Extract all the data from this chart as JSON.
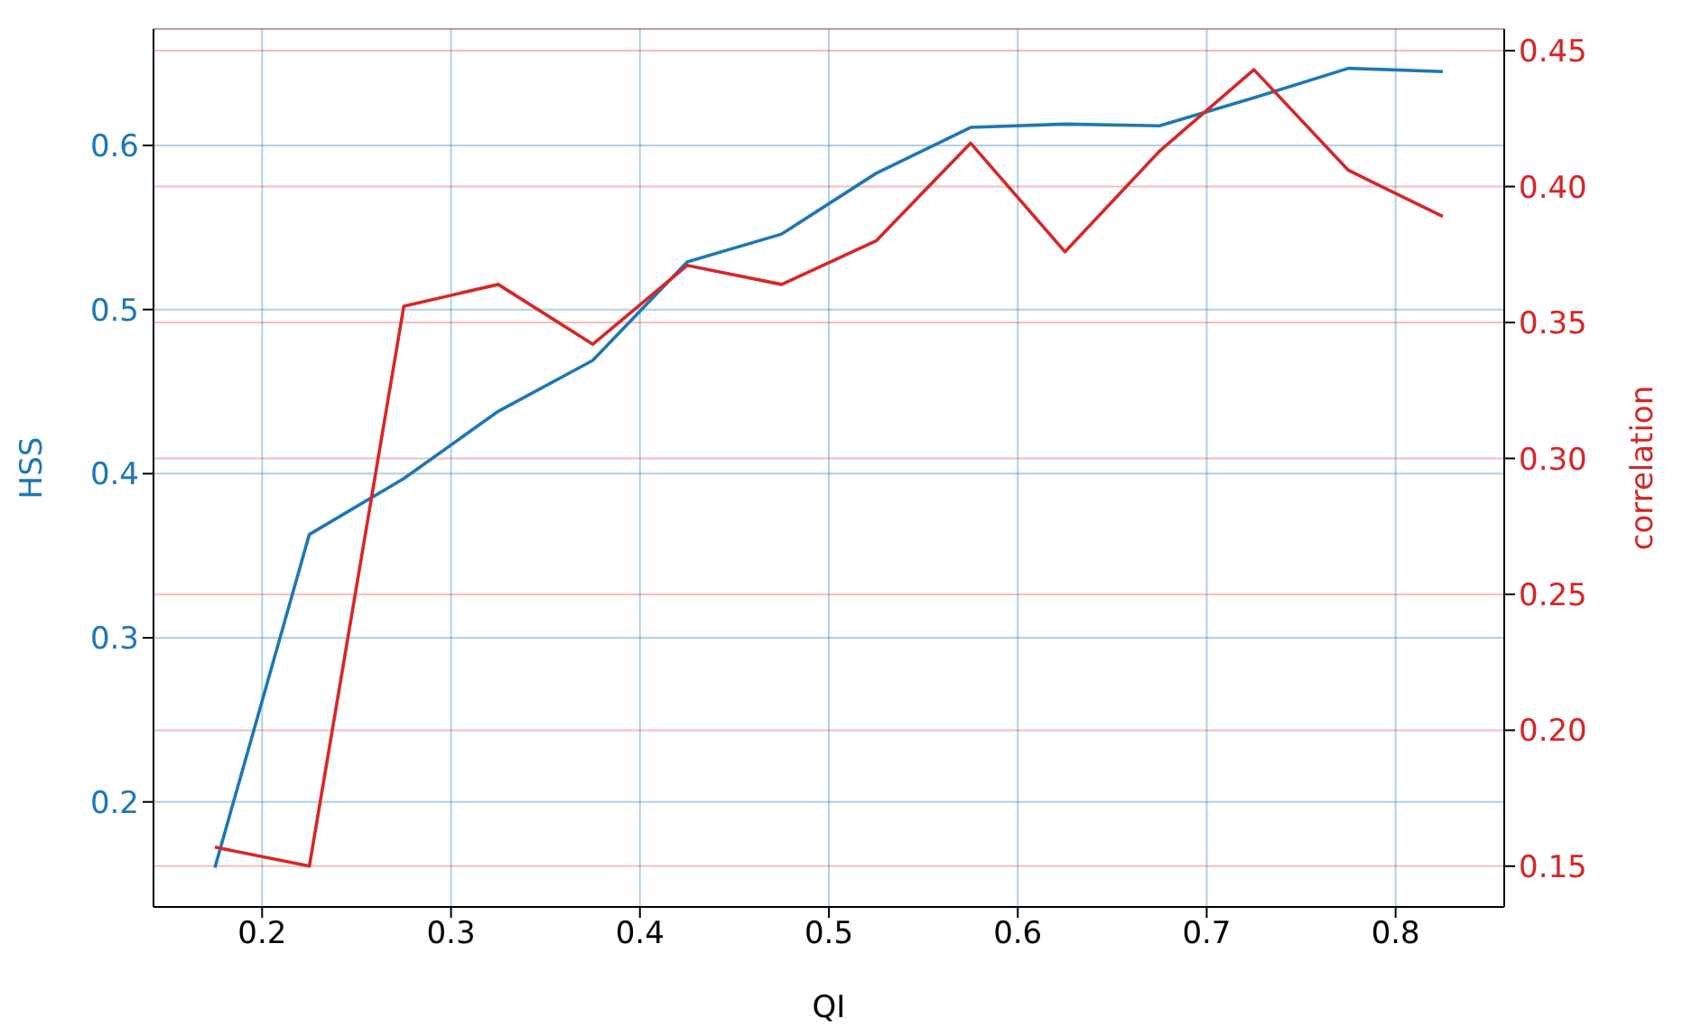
{
  "chart_data": {
    "type": "line",
    "xlabel": "QI",
    "ylabel": "HSS",
    "y2label": "correlation",
    "x": [
      0.175,
      0.225,
      0.275,
      0.325,
      0.375,
      0.425,
      0.475,
      0.525,
      0.575,
      0.625,
      0.675,
      0.725,
      0.775,
      0.825
    ],
    "series": [
      {
        "color": "#1f77b4",
        "values": [
          0.16,
          0.363,
          0.397,
          0.438,
          0.469,
          0.529,
          0.546,
          0.583,
          0.611,
          0.613,
          0.612,
          0.629,
          0.647,
          0.645
        ]
      },
      {
        "color": "#d62728",
        "axis": "y2",
        "values": [
          0.157,
          0.15,
          0.356,
          0.364,
          0.342,
          0.371,
          0.364,
          0.38,
          0.416,
          0.376,
          0.413,
          0.443,
          0.406,
          0.389
        ]
      }
    ],
    "xlim": [
      0.1425,
      0.8575
    ],
    "xticks": [
      0.2,
      0.3,
      0.4,
      0.5,
      0.6,
      0.7,
      0.8
    ],
    "ylim": [
      0.136,
      0.671
    ],
    "yticks": [
      0.2,
      0.3,
      0.4,
      0.5,
      0.6
    ],
    "y2lim": [
      0.135,
      0.458
    ],
    "y2ticks": [
      {
        "value": 0.15,
        "label": "0.15"
      },
      {
        "value": 0.2,
        "label": "0.20"
      },
      {
        "value": 0.25,
        "label": "0.25"
      },
      {
        "value": 0.3,
        "label": "0.30"
      },
      {
        "value": 0.35,
        "label": "0.35"
      },
      {
        "value": 0.4,
        "label": "0.40"
      },
      {
        "value": 0.45,
        "label": "0.45"
      }
    ],
    "grid": true,
    "legend": false,
    "marker": "none",
    "line_style": "solid"
  }
}
